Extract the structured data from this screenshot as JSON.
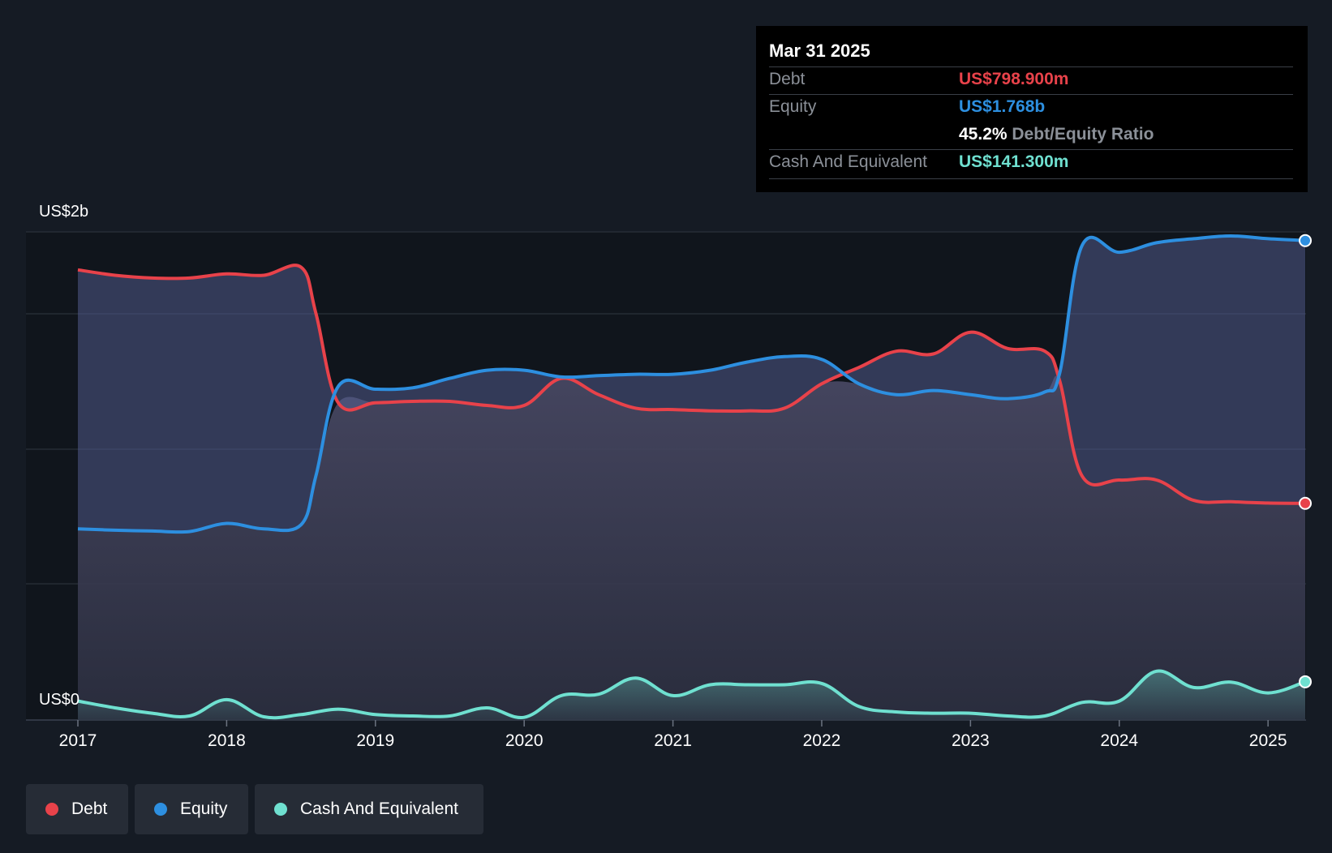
{
  "colors": {
    "debt": "#e8424a",
    "equity": "#2d8fe0",
    "cash": "#6fe0d0",
    "background": "#151b24",
    "grid": "#2f3640"
  },
  "tooltip": {
    "date": "Mar 31 2025",
    "debt_label": "Debt",
    "debt_value": "US$798.900m",
    "equity_label": "Equity",
    "equity_value": "US$1.768b",
    "ratio_value": "45.2%",
    "ratio_label": "Debt/Equity Ratio",
    "cash_label": "Cash And Equivalent",
    "cash_value": "US$141.300m"
  },
  "y_axis": {
    "top_label": "US$2b",
    "bottom_label": "US$0"
  },
  "legend": [
    {
      "label": "Debt",
      "color": "#e8424a"
    },
    {
      "label": "Equity",
      "color": "#2d8fe0"
    },
    {
      "label": "Cash And Equivalent",
      "color": "#6fe0d0"
    }
  ],
  "chart_data": {
    "type": "area",
    "x_ticks": [
      "2017",
      "2018",
      "2019",
      "2020",
      "2021",
      "2022",
      "2023",
      "2024",
      "2025"
    ],
    "ylim": [
      0,
      1.8
    ],
    "y_unit": "US$ billions",
    "grid": true,
    "legend_position": "bottom-left",
    "series": [
      {
        "name": "Debt",
        "x": [
          2017.0,
          2017.25,
          2017.5,
          2017.75,
          2018.0,
          2018.25,
          2018.5,
          2018.6,
          2018.75,
          2019.0,
          2019.25,
          2019.5,
          2019.75,
          2020.0,
          2020.25,
          2020.5,
          2020.75,
          2021.0,
          2021.25,
          2021.5,
          2021.75,
          2022.0,
          2022.25,
          2022.5,
          2022.75,
          2023.0,
          2023.25,
          2023.5,
          2023.6,
          2023.75,
          2024.0,
          2024.25,
          2024.5,
          2024.75,
          2025.0,
          2025.25
        ],
        "values": [
          1.66,
          1.64,
          1.63,
          1.63,
          1.645,
          1.64,
          1.67,
          1.5,
          1.17,
          1.17,
          1.175,
          1.175,
          1.16,
          1.16,
          1.26,
          1.2,
          1.15,
          1.145,
          1.14,
          1.14,
          1.15,
          1.24,
          1.3,
          1.36,
          1.35,
          1.43,
          1.37,
          1.36,
          1.25,
          0.9,
          0.885,
          0.885,
          0.81,
          0.805,
          0.8,
          0.799
        ]
      },
      {
        "name": "Equity",
        "x": [
          2017.0,
          2017.25,
          2017.5,
          2017.75,
          2018.0,
          2018.25,
          2018.5,
          2018.6,
          2018.75,
          2019.0,
          2019.25,
          2019.5,
          2019.75,
          2020.0,
          2020.25,
          2020.5,
          2020.75,
          2021.0,
          2021.25,
          2021.5,
          2021.75,
          2022.0,
          2022.25,
          2022.5,
          2022.75,
          2023.0,
          2023.25,
          2023.5,
          2023.6,
          2023.75,
          2024.0,
          2024.25,
          2024.5,
          2024.75,
          2025.0,
          2025.25
        ],
        "values": [
          0.705,
          0.7,
          0.697,
          0.695,
          0.725,
          0.705,
          0.72,
          0.9,
          1.23,
          1.22,
          1.225,
          1.26,
          1.29,
          1.29,
          1.265,
          1.27,
          1.275,
          1.275,
          1.29,
          1.32,
          1.34,
          1.33,
          1.24,
          1.2,
          1.215,
          1.2,
          1.185,
          1.21,
          1.28,
          1.75,
          1.725,
          1.76,
          1.775,
          1.785,
          1.775,
          1.768
        ]
      },
      {
        "name": "Cash And Equivalent",
        "x": [
          2017.0,
          2017.25,
          2017.5,
          2017.75,
          2018.0,
          2018.25,
          2018.5,
          2018.75,
          2019.0,
          2019.25,
          2019.5,
          2019.75,
          2020.0,
          2020.25,
          2020.5,
          2020.75,
          2021.0,
          2021.25,
          2021.5,
          2021.75,
          2022.0,
          2022.25,
          2022.5,
          2022.75,
          2023.0,
          2023.25,
          2023.5,
          2023.75,
          2024.0,
          2024.25,
          2024.5,
          2024.75,
          2025.0,
          2025.25
        ],
        "values": [
          0.07,
          0.045,
          0.025,
          0.015,
          0.075,
          0.012,
          0.02,
          0.04,
          0.02,
          0.015,
          0.015,
          0.045,
          0.01,
          0.09,
          0.095,
          0.155,
          0.09,
          0.13,
          0.13,
          0.13,
          0.135,
          0.05,
          0.03,
          0.025,
          0.025,
          0.015,
          0.015,
          0.065,
          0.07,
          0.18,
          0.12,
          0.14,
          0.1,
          0.141
        ]
      }
    ]
  }
}
